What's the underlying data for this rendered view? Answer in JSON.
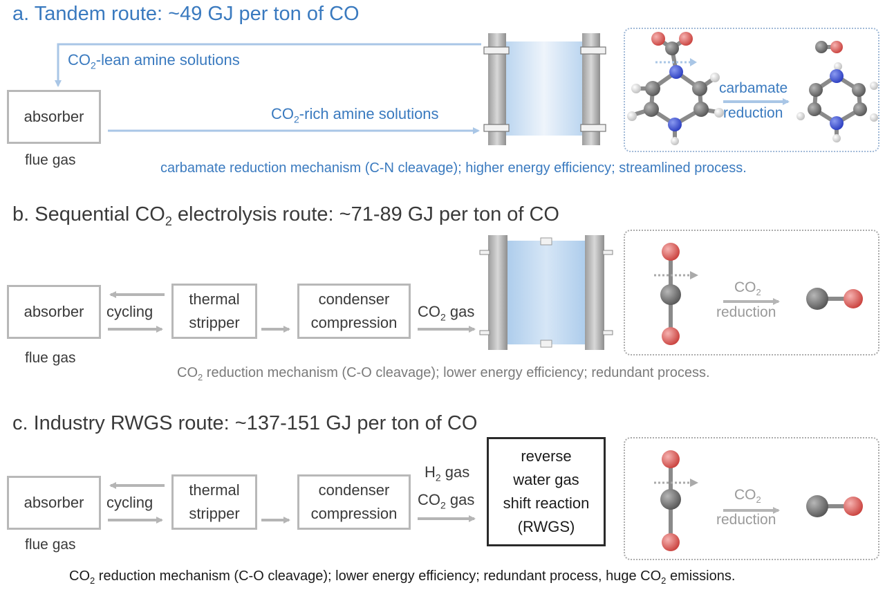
{
  "panel_a": {
    "title": "a. Tandem route: ~49 GJ per ton of CO",
    "lean_label_pre": "CO",
    "lean_label_sub": "2",
    "lean_label_post": "-lean amine solutions",
    "rich_label_pre": "CO",
    "rich_label_sub": "2",
    "rich_label_post": "-rich amine solutions",
    "absorber": "absorber",
    "flue_gas": "flue gas",
    "reaction_line1": "carbamate",
    "reaction_line2": "reduction",
    "note": "carbamate reduction mechanism (C-N cleavage); higher energy efficiency; streamlined process."
  },
  "panel_b": {
    "title_pre": "b. Sequential CO",
    "title_sub": "2",
    "title_post": " electrolysis route: ~71-89 GJ per ton of CO",
    "absorber": "absorber",
    "flue_gas": "flue gas",
    "cycling": "cycling",
    "stripper_line1": "thermal",
    "stripper_line2": "stripper",
    "condenser_line1": "condenser",
    "condenser_line2": "compression",
    "gas_pre": "CO",
    "gas_sub": "2",
    "gas_post": " gas",
    "reaction_pre": "CO",
    "reaction_sub": "2",
    "reaction_line2": "reduction",
    "note_pre": "CO",
    "note_sub": "2",
    "note_post": " reduction mechanism (C-O cleavage); lower energy efficiency; redundant process."
  },
  "panel_c": {
    "title": "c. Industry RWGS route: ~137-151 GJ per ton of CO",
    "absorber": "absorber",
    "flue_gas": "flue gas",
    "cycling": "cycling",
    "stripper_line1": "thermal",
    "stripper_line2": "stripper",
    "condenser_line1": "condenser",
    "condenser_line2": "compression",
    "h2_pre": "H",
    "h2_sub": "2",
    "h2_post": " gas",
    "co2_pre": "CO",
    "co2_sub": "2",
    "co2_post": " gas",
    "rwgs_line1": "reverse",
    "rwgs_line2": "water gas",
    "rwgs_line3": "shift reaction",
    "rwgs_line4": "(RWGS)",
    "reaction_pre": "CO",
    "reaction_sub": "2",
    "reaction_line2": "reduction",
    "note_pre": "CO",
    "note_sub": "2",
    "note_mid": " reduction mechanism (C-O cleavage); lower energy efficiency; redundant process, huge CO",
    "note_sub2": "2",
    "note_post": " emissions."
  },
  "colors": {
    "blue_text": "#3a7abf",
    "blue_arrow": "#a9c6e6",
    "gray_arrow": "#b5b5b5",
    "oxygen": "#d9534f",
    "carbon": "#6b6b6b",
    "nitrogen": "#3a4fd0",
    "hydrogen": "#e6e6e6"
  }
}
